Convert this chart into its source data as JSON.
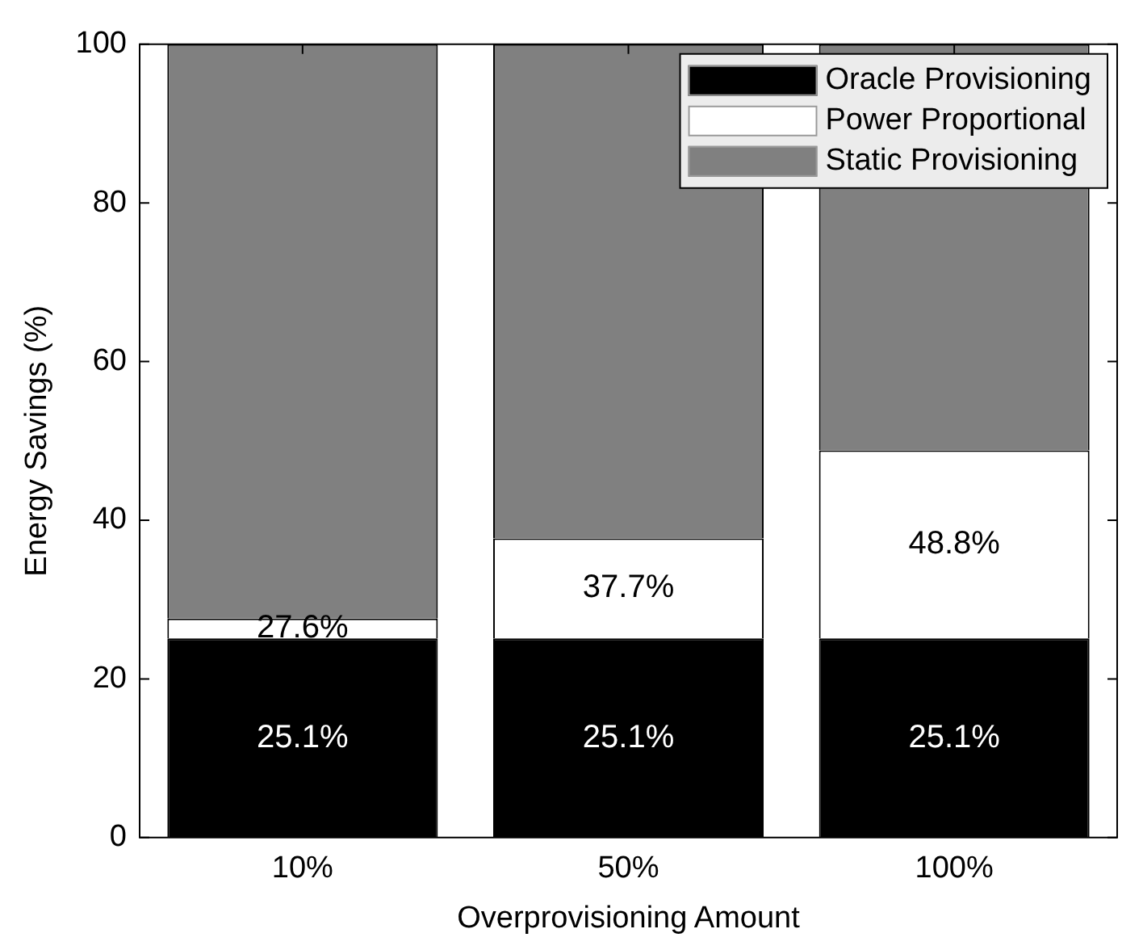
{
  "chart_data": {
    "type": "bar",
    "stacked": true,
    "xlabel": "Overprovisioning Amount",
    "ylabel": "Energy Savings (%)",
    "categories": [
      "10%",
      "50%",
      "100%"
    ],
    "series": [
      {
        "name": "Oracle Provisioning",
        "color": "#000000",
        "values": [
          25.1,
          25.1,
          25.1
        ],
        "value_labels": [
          "25.1%",
          "25.1%",
          "25.1%"
        ]
      },
      {
        "name": "Power Proportional",
        "color": "#ffffff",
        "values": [
          2.5,
          12.6,
          23.7
        ]
      },
      {
        "name": "Static Provisioning",
        "color": "#808080",
        "values": [
          72.4,
          62.3,
          51.2
        ]
      }
    ],
    "annotations": [
      {
        "text": "27.6%",
        "x": "10%",
        "y": 27.6
      },
      {
        "text": "37.7%",
        "x": "50%",
        "y": 37.7
      },
      {
        "text": "48.8%",
        "x": "100%",
        "y": 48.8
      }
    ],
    "ylim": [
      0,
      100
    ],
    "yticks": [
      0,
      20,
      40,
      60,
      80,
      100
    ],
    "grid": false,
    "legend": "top right"
  }
}
